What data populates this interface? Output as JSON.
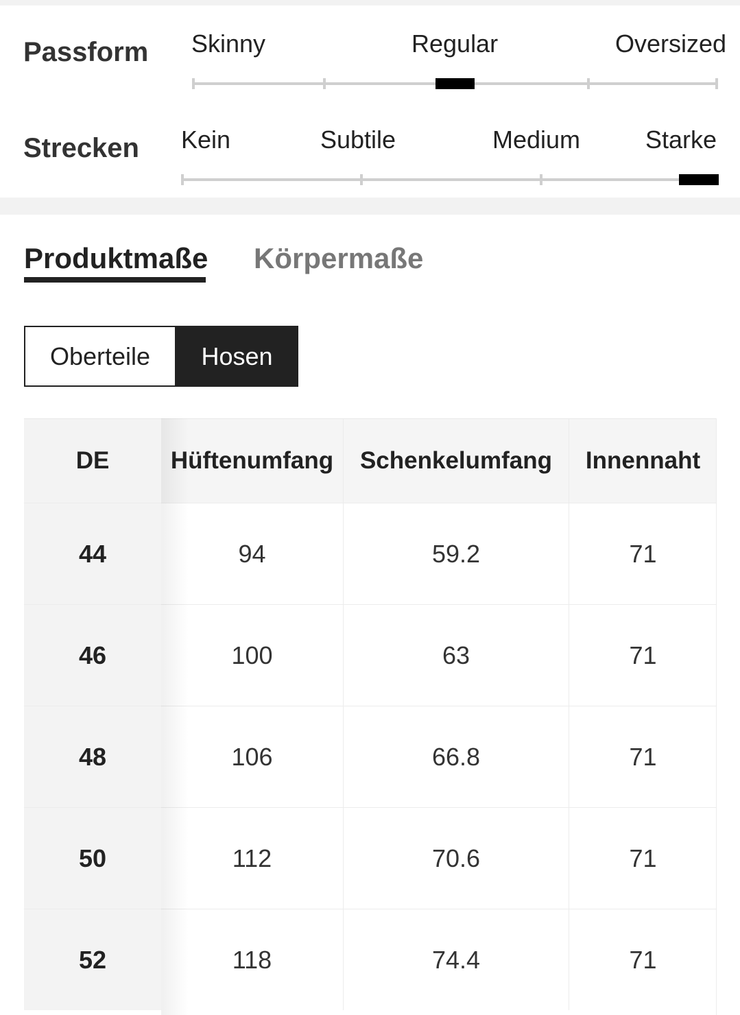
{
  "fit": {
    "passform": {
      "label": "Passform",
      "options": [
        "Skinny",
        "Regular",
        "Oversized"
      ],
      "selected_index": 2,
      "steps": 5
    },
    "strecken": {
      "label": "Strecken",
      "options": [
        "Kein",
        "Subtile",
        "Medium",
        "Starke"
      ],
      "selected_index": 3,
      "steps": 4
    }
  },
  "tabs": {
    "active": "Produktmaße",
    "inactive": "Körpermaße"
  },
  "segment": {
    "tops": "Oberteile",
    "pants": "Hosen",
    "selected": "pants"
  },
  "table": {
    "headers": [
      "DE",
      "Hüftenumfang",
      "Schenkelumfang",
      "Innennaht"
    ],
    "rows": [
      [
        "44",
        "94",
        "59.2",
        "71"
      ],
      [
        "46",
        "100",
        "63",
        "71"
      ],
      [
        "48",
        "106",
        "66.8",
        "71"
      ],
      [
        "50",
        "112",
        "70.6",
        "71"
      ],
      [
        "52",
        "118",
        "74.4",
        "71"
      ]
    ]
  }
}
